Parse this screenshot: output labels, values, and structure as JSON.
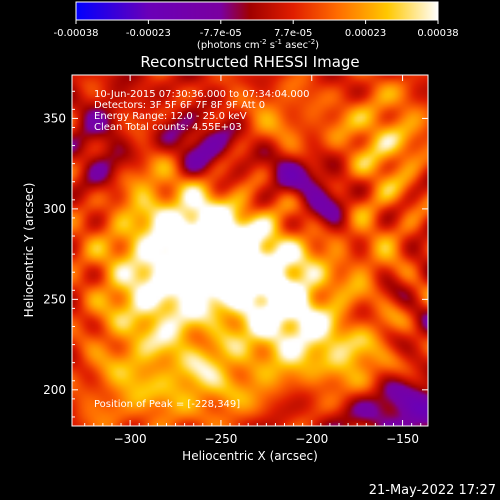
{
  "colorbar": {
    "ticks": [
      "-0.00038",
      "-0.00023",
      "-7.7e-05",
      "7.7e-05",
      "0.00023",
      "0.00038"
    ],
    "units_base": "(photons cm",
    "units_exp1": "-2",
    "units_mid1": " s",
    "units_exp2": "-1",
    "units_mid2": " asec",
    "units_exp3": "-2",
    "units_end": ")"
  },
  "footer": {
    "timestamp": "21-May-2022 17:27"
  },
  "chart_data": {
    "type": "heatmap",
    "title": "Reconstructed RHESSI Image",
    "xlabel": "Heliocentric X (arcsec)",
    "ylabel": "Heliocentric Y (arcsec)",
    "xlim": [
      -332,
      -136
    ],
    "ylim": [
      180,
      374
    ],
    "x_ticks": [
      -300,
      -250,
      -200,
      -150
    ],
    "y_ticks": [
      200,
      250,
      300,
      350
    ],
    "x_tick_labels": [
      "−300",
      "−250",
      "−200",
      "−150"
    ],
    "y_tick_labels": [
      "200",
      "250",
      "300",
      "350"
    ],
    "colorbar_range": [
      -0.00038,
      0.00038
    ],
    "colormap": [
      "#0000ff",
      "#5a00b4",
      "#7a00a0",
      "#9a0000",
      "#d81400",
      "#ff4800",
      "#ff8c00",
      "#ffd200",
      "#ffff96",
      "#ffffff"
    ],
    "peak": {
      "x": -228,
      "y": 349
    },
    "annotations": [
      "10-Jun-2015 07:30:36.000 to 07:34:04.000",
      "Detectors: 3F 5F 6F 7F 8F 9F  Att 0",
      "Energy Range: 12.0 - 25.0 keV",
      "Clean    Total counts: 4.55E+03",
      "Position of Peak = [-228,349]"
    ],
    "sources": [
      {
        "x": -258,
        "y": 282,
        "sx": 20,
        "sy": 18,
        "amp": 0.95
      },
      {
        "x": -228,
        "y": 265,
        "sx": 22,
        "sy": 20,
        "amp": 0.9
      },
      {
        "x": -285,
        "y": 250,
        "sx": 24,
        "sy": 22,
        "amp": 0.75
      },
      {
        "x": -212,
        "y": 238,
        "sx": 16,
        "sy": 18,
        "amp": 0.7
      },
      {
        "x": -300,
        "y": 310,
        "sx": 30,
        "sy": 30,
        "amp": 0.55
      },
      {
        "x": -180,
        "y": 218,
        "sx": 20,
        "sy": 16,
        "amp": 0.6
      },
      {
        "x": -250,
        "y": 205,
        "sx": 22,
        "sy": 18,
        "amp": 0.55
      },
      {
        "x": -158,
        "y": 340,
        "sx": 18,
        "sy": 22,
        "amp": 0.55
      },
      {
        "x": -300,
        "y": 200,
        "sx": 24,
        "sy": 20,
        "amp": 0.45
      },
      {
        "x": -220,
        "y": 345,
        "sx": 26,
        "sy": 22,
        "amp": 0.4
      },
      {
        "x": -170,
        "y": 280,
        "sx": 22,
        "sy": 26,
        "amp": 0.35
      }
    ],
    "negative_regions": [
      {
        "x": -260,
        "y": 335,
        "sx": 18,
        "sy": 12,
        "amp": 0.6
      },
      {
        "x": -315,
        "y": 325,
        "sx": 12,
        "sy": 20,
        "amp": 0.6
      },
      {
        "x": -210,
        "y": 320,
        "sx": 14,
        "sy": 10,
        "amp": 0.5
      },
      {
        "x": -150,
        "y": 190,
        "sx": 16,
        "sy": 10,
        "amp": 0.55
      },
      {
        "x": -190,
        "y": 300,
        "sx": 10,
        "sy": 12,
        "amp": 0.45
      }
    ]
  }
}
